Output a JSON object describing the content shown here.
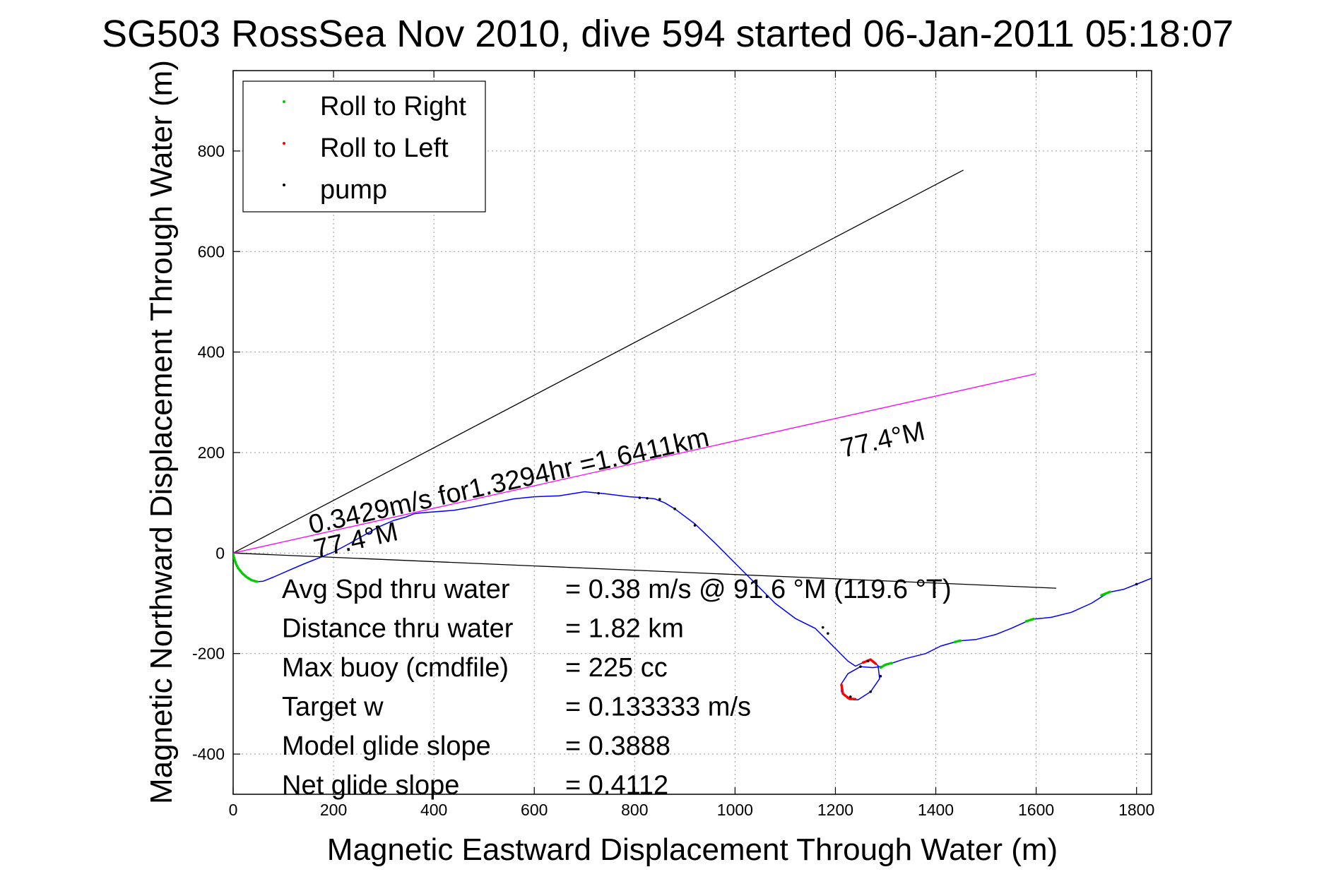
{
  "chart_data": {
    "type": "line",
    "title": "SG503 RossSea Nov 2010, dive 594 started 06-Jan-2011 05:18:07",
    "xlabel": "Magnetic Eastward Displacement Through Water (m)",
    "ylabel": "Magnetic Northward Displacement Through Water (m)",
    "xlim": [
      0,
      1830
    ],
    "ylim": [
      -480,
      960
    ],
    "x_ticks": [
      0,
      200,
      400,
      600,
      800,
      1000,
      1200,
      1400,
      1600,
      1800
    ],
    "y_ticks": [
      -400,
      -200,
      0,
      200,
      400,
      600,
      800
    ],
    "grid": true,
    "legend_position": "top-left",
    "legend": [
      {
        "label": "Roll to Right",
        "color": "#00cc00"
      },
      {
        "label": "Roll to Left",
        "color": "#ff0000"
      },
      {
        "label": "pump",
        "color": "#000000"
      }
    ],
    "track": {
      "color": "#0000ff",
      "points": [
        [
          0,
          0
        ],
        [
          2,
          -10
        ],
        [
          5,
          -20
        ],
        [
          10,
          -30
        ],
        [
          18,
          -40
        ],
        [
          27,
          -48
        ],
        [
          37,
          -54
        ],
        [
          48,
          -57
        ],
        [
          60,
          -56
        ],
        [
          80,
          -48
        ],
        [
          110,
          -35
        ],
        [
          140,
          -22
        ],
        [
          170,
          -10
        ],
        [
          200,
          2
        ],
        [
          230,
          18
        ],
        [
          260,
          35
        ],
        [
          290,
          52
        ],
        [
          320,
          65
        ],
        [
          345,
          72
        ],
        [
          360,
          78
        ],
        [
          375,
          80
        ],
        [
          400,
          82
        ],
        [
          440,
          85
        ],
        [
          480,
          92
        ],
        [
          520,
          100
        ],
        [
          560,
          108
        ],
        [
          600,
          112
        ],
        [
          650,
          114
        ],
        [
          700,
          122
        ],
        [
          740,
          118
        ],
        [
          790,
          112
        ],
        [
          820,
          110
        ],
        [
          840,
          108
        ],
        [
          860,
          100
        ],
        [
          880,
          88
        ],
        [
          920,
          58
        ],
        [
          960,
          20
        ],
        [
          1000,
          -20
        ],
        [
          1040,
          -60
        ],
        [
          1080,
          -100
        ],
        [
          1120,
          -130
        ],
        [
          1160,
          -150
        ],
        [
          1180,
          -170
        ],
        [
          1200,
          -190
        ],
        [
          1225,
          -215
        ],
        [
          1240,
          -225
        ],
        [
          1255,
          -218
        ],
        [
          1270,
          -212
        ],
        [
          1285,
          -224
        ],
        [
          1288,
          -250
        ],
        [
          1270,
          -276
        ],
        [
          1245,
          -292
        ],
        [
          1225,
          -290
        ],
        [
          1212,
          -276
        ],
        [
          1212,
          -260
        ],
        [
          1225,
          -240
        ],
        [
          1250,
          -226
        ],
        [
          1275,
          -228
        ],
        [
          1295,
          -225
        ],
        [
          1310,
          -220
        ],
        [
          1340,
          -210
        ],
        [
          1380,
          -200
        ],
        [
          1410,
          -185
        ],
        [
          1445,
          -175
        ],
        [
          1480,
          -172
        ],
        [
          1520,
          -162
        ],
        [
          1550,
          -150
        ],
        [
          1590,
          -132
        ],
        [
          1630,
          -128
        ],
        [
          1670,
          -118
        ],
        [
          1710,
          -100
        ],
        [
          1745,
          -78
        ],
        [
          1775,
          -72
        ],
        [
          1800,
          -62
        ],
        [
          1830,
          -50
        ]
      ]
    },
    "roll_right_segments": [
      [
        [
          0,
          -2
        ],
        [
          2,
          -10
        ],
        [
          5,
          -20
        ],
        [
          10,
          -30
        ],
        [
          18,
          -40
        ],
        [
          27,
          -48
        ],
        [
          37,
          -54
        ],
        [
          48,
          -57
        ]
      ],
      [
        [
          1290,
          -228
        ],
        [
          1300,
          -222
        ],
        [
          1312,
          -219
        ]
      ],
      [
        [
          1438,
          -177
        ],
        [
          1450,
          -174
        ]
      ],
      [
        [
          1580,
          -136
        ],
        [
          1595,
          -131
        ]
      ],
      [
        [
          1730,
          -84
        ],
        [
          1748,
          -77
        ]
      ]
    ],
    "roll_left_segments": [
      [
        [
          1255,
          -218
        ],
        [
          1270,
          -212
        ],
        [
          1280,
          -220
        ]
      ],
      [
        [
          1212,
          -262
        ],
        [
          1215,
          -280
        ],
        [
          1228,
          -290
        ],
        [
          1242,
          -291
        ]
      ]
    ],
    "pump_points": [
      [
        728,
        119
      ],
      [
        810,
        110
      ],
      [
        825,
        109
      ],
      [
        850,
        107
      ],
      [
        880,
        88
      ],
      [
        920,
        55
      ],
      [
        1175,
        -148
      ],
      [
        1185,
        -160
      ],
      [
        1230,
        -286
      ],
      [
        1270,
        -276
      ],
      [
        1250,
        -226
      ],
      [
        1265,
        -215
      ],
      [
        1290,
        -245
      ],
      [
        1800,
        -62
      ]
    ],
    "heading_lines": {
      "magenta": {
        "color": "#ff00ff",
        "from": [
          0,
          0
        ],
        "to": [
          1600,
          357
        ]
      },
      "upper_black": {
        "color": "#000000",
        "from": [
          0,
          0
        ],
        "to": [
          1455,
          762
        ]
      },
      "lower_black": {
        "color": "#000000",
        "from": [
          0,
          0
        ],
        "to": [
          1640,
          -70
        ]
      }
    },
    "annotations": [
      {
        "text": "0.3429m/s for1.3294hr =1.6411km",
        "x": 155,
        "y": 38,
        "angle": 12.5
      },
      {
        "text": "77.4°M",
        "x": 165,
        "y": -10,
        "angle": 12.5
      },
      {
        "text": "77.4°M",
        "x": 1215,
        "y": 190,
        "angle": 12.5
      }
    ],
    "stats": [
      {
        "label": "Avg Spd thru water",
        "value": "=  0.38 m/s @  91.6 °M (119.6 °T)"
      },
      {
        "label": "Distance thru water",
        "value": "=  1.82 km"
      },
      {
        "label": "Max buoy (cmdfile)",
        "value": "= 225 cc"
      },
      {
        "label": "Target w",
        "value": "= 0.133333 m/s"
      },
      {
        "label": "Model glide slope",
        "value": "= 0.3888"
      },
      {
        "label": "Net glide slope",
        "value": "= 0.4112"
      }
    ]
  }
}
